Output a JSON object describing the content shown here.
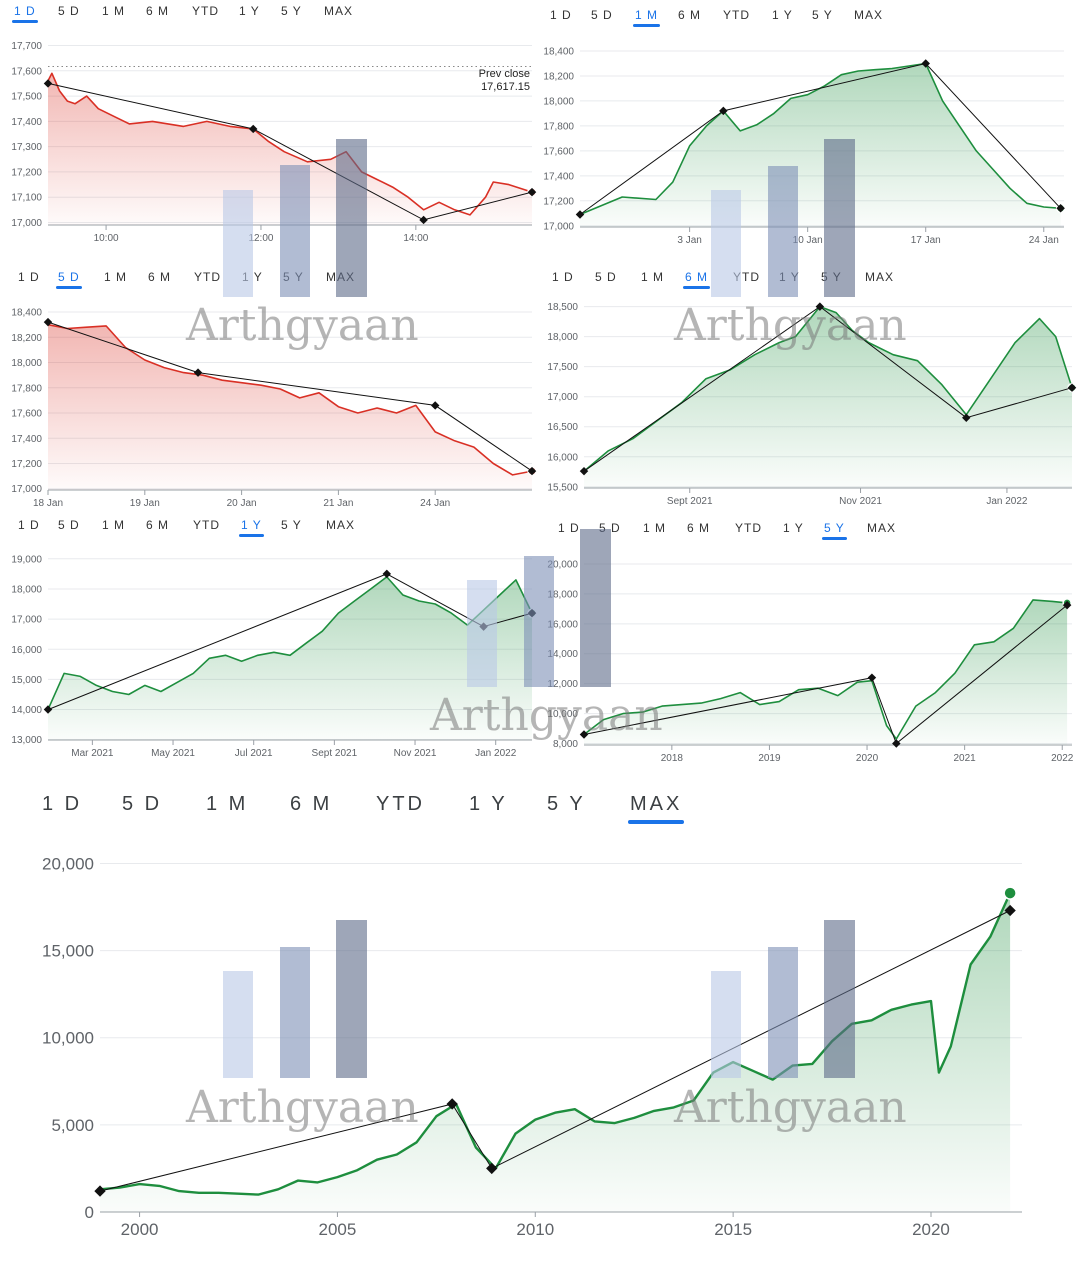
{
  "tabs": [
    "1 D",
    "5 D",
    "1 M",
    "6 M",
    "YTD",
    "1 Y",
    "5 Y",
    "MAX"
  ],
  "watermark": "Arthgyaan",
  "prev_close": {
    "label": "Prev close",
    "value": "17,617.15"
  },
  "colors": {
    "red": "#d93025",
    "green": "#1e8e3e",
    "accent": "#1a73e8"
  },
  "chart_data": [
    {
      "id": "1d",
      "type": "area",
      "active_tab": 0,
      "color": "red",
      "yticks": [
        17000,
        17100,
        17200,
        17300,
        17400,
        17500,
        17600,
        17700
      ],
      "ytick_labels": [
        "17,000",
        "17,100",
        "17,200",
        "17,300",
        "17,400",
        "17,500",
        "17,600",
        "17,700"
      ],
      "ylim": [
        16990,
        17710
      ],
      "xlim": [
        9.25,
        15.5
      ],
      "xticks": [
        10,
        12,
        14
      ],
      "xtick_labels": [
        "10:00",
        "12:00",
        "14:00"
      ],
      "series": [
        {
          "x": [
            9.25,
            9.3,
            9.4,
            9.5,
            9.6,
            9.75,
            9.9,
            10.1,
            10.3,
            10.6,
            11,
            11.3,
            11.6,
            11.9,
            12.1,
            12.3,
            12.6,
            12.9,
            13.1,
            13.3,
            13.5,
            13.7,
            13.9,
            14.1,
            14.3,
            14.5,
            14.7,
            14.9,
            15.0,
            15.2,
            15.4,
            15.5
          ],
          "y": [
            17560,
            17590,
            17520,
            17480,
            17470,
            17500,
            17450,
            17420,
            17390,
            17400,
            17380,
            17400,
            17380,
            17370,
            17320,
            17280,
            17240,
            17250,
            17280,
            17200,
            17170,
            17140,
            17100,
            17050,
            17080,
            17050,
            17030,
            17100,
            17160,
            17150,
            17130,
            17120
          ]
        }
      ],
      "trend": {
        "x": [
          9.25,
          11.9,
          14.1,
          15.5
        ],
        "y": [
          17550,
          17370,
          17010,
          17120
        ]
      },
      "reference_line": 17617.15
    },
    {
      "id": "1m",
      "type": "area",
      "active_tab": 2,
      "color": "green",
      "yticks": [
        17000,
        17200,
        17400,
        17600,
        17800,
        18000,
        18200,
        18400
      ],
      "ytick_labels": [
        "17,000",
        "17,200",
        "17,400",
        "17,600",
        "17,800",
        "18,000",
        "18,200",
        "18,400"
      ],
      "ylim": [
        16990,
        18440
      ],
      "xlim": [
        -3.5,
        25.2
      ],
      "xticks": [
        3,
        10,
        17,
        24
      ],
      "xtick_labels": [
        "3 Jan",
        "10 Jan",
        "17 Jan",
        "24 Jan"
      ],
      "series": [
        {
          "x": [
            -3.5,
            -1,
            1,
            2,
            3,
            4,
            5,
            6,
            7,
            8,
            9,
            10,
            11,
            12,
            13,
            14,
            15,
            16,
            17,
            18,
            19,
            20,
            21,
            22,
            23,
            24,
            25
          ],
          "y": [
            17090,
            17230,
            17210,
            17350,
            17640,
            17800,
            17920,
            17760,
            17810,
            17900,
            18020,
            18050,
            18120,
            18210,
            18240,
            18250,
            18260,
            18280,
            18300,
            18000,
            17800,
            17600,
            17450,
            17300,
            17180,
            17150,
            17140
          ]
        }
      ],
      "trend": {
        "x": [
          -3.5,
          5,
          17,
          25
        ],
        "y": [
          17090,
          17920,
          18300,
          17140
        ]
      }
    },
    {
      "id": "5d",
      "type": "area",
      "active_tab": 1,
      "color": "red",
      "yticks": [
        17000,
        17200,
        17400,
        17600,
        17800,
        18000,
        18200,
        18400
      ],
      "ytick_labels": [
        "17,000",
        "17,200",
        "17,400",
        "17,600",
        "17,800",
        "18,000",
        "18,200",
        "18,400"
      ],
      "ylim": [
        16990,
        18440
      ],
      "xlim": [
        0,
        5
      ],
      "xticks": [
        0,
        1,
        2,
        3,
        4
      ],
      "xtick_labels": [
        "18 Jan",
        "19 Jan",
        "20 Jan",
        "21 Jan",
        "24 Jan"
      ],
      "series": [
        {
          "x": [
            0,
            0.2,
            0.4,
            0.6,
            0.8,
            1.0,
            1.2,
            1.4,
            1.6,
            1.8,
            2.0,
            2.2,
            2.4,
            2.6,
            2.8,
            3.0,
            3.2,
            3.4,
            3.6,
            3.8,
            4.0,
            4.2,
            4.4,
            4.6,
            4.8,
            5.0
          ],
          "y": [
            18300,
            18270,
            18280,
            18290,
            18120,
            18020,
            17960,
            17920,
            17900,
            17860,
            17840,
            17820,
            17790,
            17720,
            17760,
            17650,
            17600,
            17640,
            17600,
            17660,
            17450,
            17380,
            17330,
            17200,
            17110,
            17140
          ]
        }
      ],
      "trend": {
        "x": [
          0,
          1.55,
          4.0,
          5.0
        ],
        "y": [
          18320,
          17920,
          17660,
          17140
        ]
      }
    },
    {
      "id": "6m",
      "type": "area",
      "active_tab": 3,
      "color": "green",
      "yticks": [
        15500,
        16000,
        16500,
        17000,
        17500,
        18000,
        18500
      ],
      "ytick_labels": [
        "15,500",
        "16,000",
        "16,500",
        "17,000",
        "17,500",
        "18,000",
        "18,500"
      ],
      "ylim": [
        15480,
        18560
      ],
      "xlim": [
        0,
        6
      ],
      "xticks": [
        1.3,
        3.4,
        5.2
      ],
      "xtick_labels": [
        "Sept 2021",
        "Nov 2021",
        "Jan 2022"
      ],
      "series": [
        {
          "x": [
            0,
            0.3,
            0.6,
            0.9,
            1.2,
            1.5,
            1.8,
            2.1,
            2.4,
            2.6,
            2.9,
            3.1,
            3.3,
            3.5,
            3.8,
            4.1,
            4.4,
            4.7,
            5.0,
            5.3,
            5.6,
            5.8,
            6.0
          ],
          "y": [
            15760,
            16100,
            16300,
            16600,
            16900,
            17300,
            17450,
            17700,
            17900,
            18000,
            18500,
            18400,
            18100,
            17900,
            17700,
            17600,
            17200,
            16700,
            17300,
            17900,
            18300,
            18000,
            17150
          ]
        }
      ],
      "trend": {
        "x": [
          0,
          2.9,
          4.7,
          6.0
        ],
        "y": [
          15760,
          18500,
          16650,
          17150
        ]
      }
    },
    {
      "id": "1y",
      "type": "area",
      "active_tab": 5,
      "color": "green",
      "yticks": [
        13000,
        14000,
        15000,
        16000,
        17000,
        18000,
        19000
      ],
      "ytick_labels": [
        "13,000",
        "14,000",
        "15,000",
        "16,000",
        "17,000",
        "18,000",
        "19,000"
      ],
      "ylim": [
        12990,
        19060
      ],
      "xlim": [
        0,
        12
      ],
      "xticks": [
        1.1,
        3.1,
        5.1,
        7.1,
        9.1,
        11.1
      ],
      "xtick_labels": [
        "Mar 2021",
        "May 2021",
        "Jul 2021",
        "Sept 2021",
        "Nov 2021",
        "Jan 2022"
      ],
      "series": [
        {
          "x": [
            0,
            0.4,
            0.8,
            1.2,
            1.6,
            2.0,
            2.4,
            2.8,
            3.2,
            3.6,
            4.0,
            4.4,
            4.8,
            5.2,
            5.6,
            6.0,
            6.4,
            6.8,
            7.2,
            7.6,
            8.0,
            8.4,
            8.8,
            9.2,
            9.6,
            10.0,
            10.4,
            10.8,
            11.2,
            11.6,
            12.0
          ],
          "y": [
            14000,
            15200,
            15100,
            14800,
            14600,
            14500,
            14800,
            14600,
            14900,
            15200,
            15700,
            15800,
            15600,
            15800,
            15900,
            15800,
            16200,
            16600,
            17200,
            17600,
            18000,
            18400,
            17800,
            17600,
            17500,
            17200,
            16800,
            17300,
            17800,
            18300,
            17200
          ]
        }
      ],
      "trend": {
        "x": [
          0,
          8.4,
          10.8,
          12.0
        ],
        "y": [
          14000,
          18500,
          16750,
          17200
        ]
      }
    },
    {
      "id": "5y",
      "type": "area",
      "active_tab": 6,
      "color": "green",
      "yticks": [
        8000,
        10000,
        12000,
        14000,
        16000,
        18000,
        20000
      ],
      "ytick_labels": [
        "8,000",
        "10,000",
        "12,000",
        "14,000",
        "16,000",
        "18,000",
        "20,000"
      ],
      "ylim": [
        7900,
        20200
      ],
      "xlim": [
        2017.1,
        2022.1
      ],
      "xticks": [
        2018,
        2019,
        2020,
        2021,
        2022
      ],
      "xtick_labels": [
        "2018",
        "2019",
        "2020",
        "2021",
        "2022"
      ],
      "series": [
        {
          "x": [
            2017.1,
            2017.3,
            2017.5,
            2017.7,
            2017.9,
            2018.1,
            2018.3,
            2018.5,
            2018.7,
            2018.9,
            2019.1,
            2019.3,
            2019.5,
            2019.7,
            2019.9,
            2020.05,
            2020.2,
            2020.3,
            2020.5,
            2020.7,
            2020.9,
            2021.1,
            2021.3,
            2021.5,
            2021.7,
            2021.9,
            2022.05
          ],
          "y": [
            8600,
            9600,
            10000,
            10100,
            10500,
            10600,
            10700,
            11000,
            11400,
            10600,
            10800,
            11600,
            11700,
            11200,
            12100,
            12200,
            9200,
            8300,
            10500,
            11400,
            12700,
            14600,
            14800,
            15700,
            17600,
            17500,
            17400
          ]
        }
      ],
      "trend": {
        "x": [
          2017.1,
          2020.05,
          2020.3,
          2022.05
        ],
        "y": [
          8600,
          12400,
          8000,
          17250
        ]
      }
    },
    {
      "id": "max",
      "type": "area",
      "active_tab": 7,
      "color": "green",
      "yticks": [
        0,
        5000,
        10000,
        15000,
        20000
      ],
      "ytick_labels": [
        "0",
        "5,000",
        "10,000",
        "15,000",
        "20,000"
      ],
      "ylim": [
        0,
        20600
      ],
      "xlim": [
        1999,
        2022.3
      ],
      "xticks": [
        2000,
        2005,
        2010,
        2015,
        2020
      ],
      "xtick_labels": [
        "2000",
        "2005",
        "2010",
        "2015",
        "2020"
      ],
      "series": [
        {
          "x": [
            1999,
            1999.5,
            2000,
            2000.5,
            2001,
            2001.5,
            2002,
            2002.5,
            2003,
            2003.5,
            2004,
            2004.5,
            2005,
            2005.5,
            2006,
            2006.5,
            2007,
            2007.5,
            2008,
            2008.5,
            2009,
            2009.5,
            2010,
            2010.5,
            2011,
            2011.5,
            2012,
            2012.5,
            2013,
            2013.5,
            2014,
            2014.5,
            2015,
            2015.5,
            2016,
            2016.5,
            2017,
            2017.5,
            2018,
            2018.5,
            2019,
            2019.5,
            2020,
            2020.2,
            2020.5,
            2021,
            2021.5,
            2022
          ],
          "y": [
            1300,
            1400,
            1600,
            1500,
            1200,
            1100,
            1100,
            1050,
            1000,
            1300,
            1800,
            1700,
            2000,
            2400,
            3000,
            3300,
            4000,
            5500,
            6200,
            3700,
            2500,
            4500,
            5300,
            5700,
            5900,
            5200,
            5100,
            5400,
            5800,
            6000,
            6400,
            8000,
            8600,
            8100,
            7600,
            8400,
            8500,
            9800,
            10800,
            11000,
            11600,
            11900,
            12100,
            8000,
            9500,
            14200,
            15800,
            18300
          ]
        }
      ],
      "trend": {
        "x": [
          1999,
          2007.9,
          2008.9,
          2022
        ],
        "y": [
          1200,
          6200,
          2500,
          17300
        ]
      }
    }
  ]
}
